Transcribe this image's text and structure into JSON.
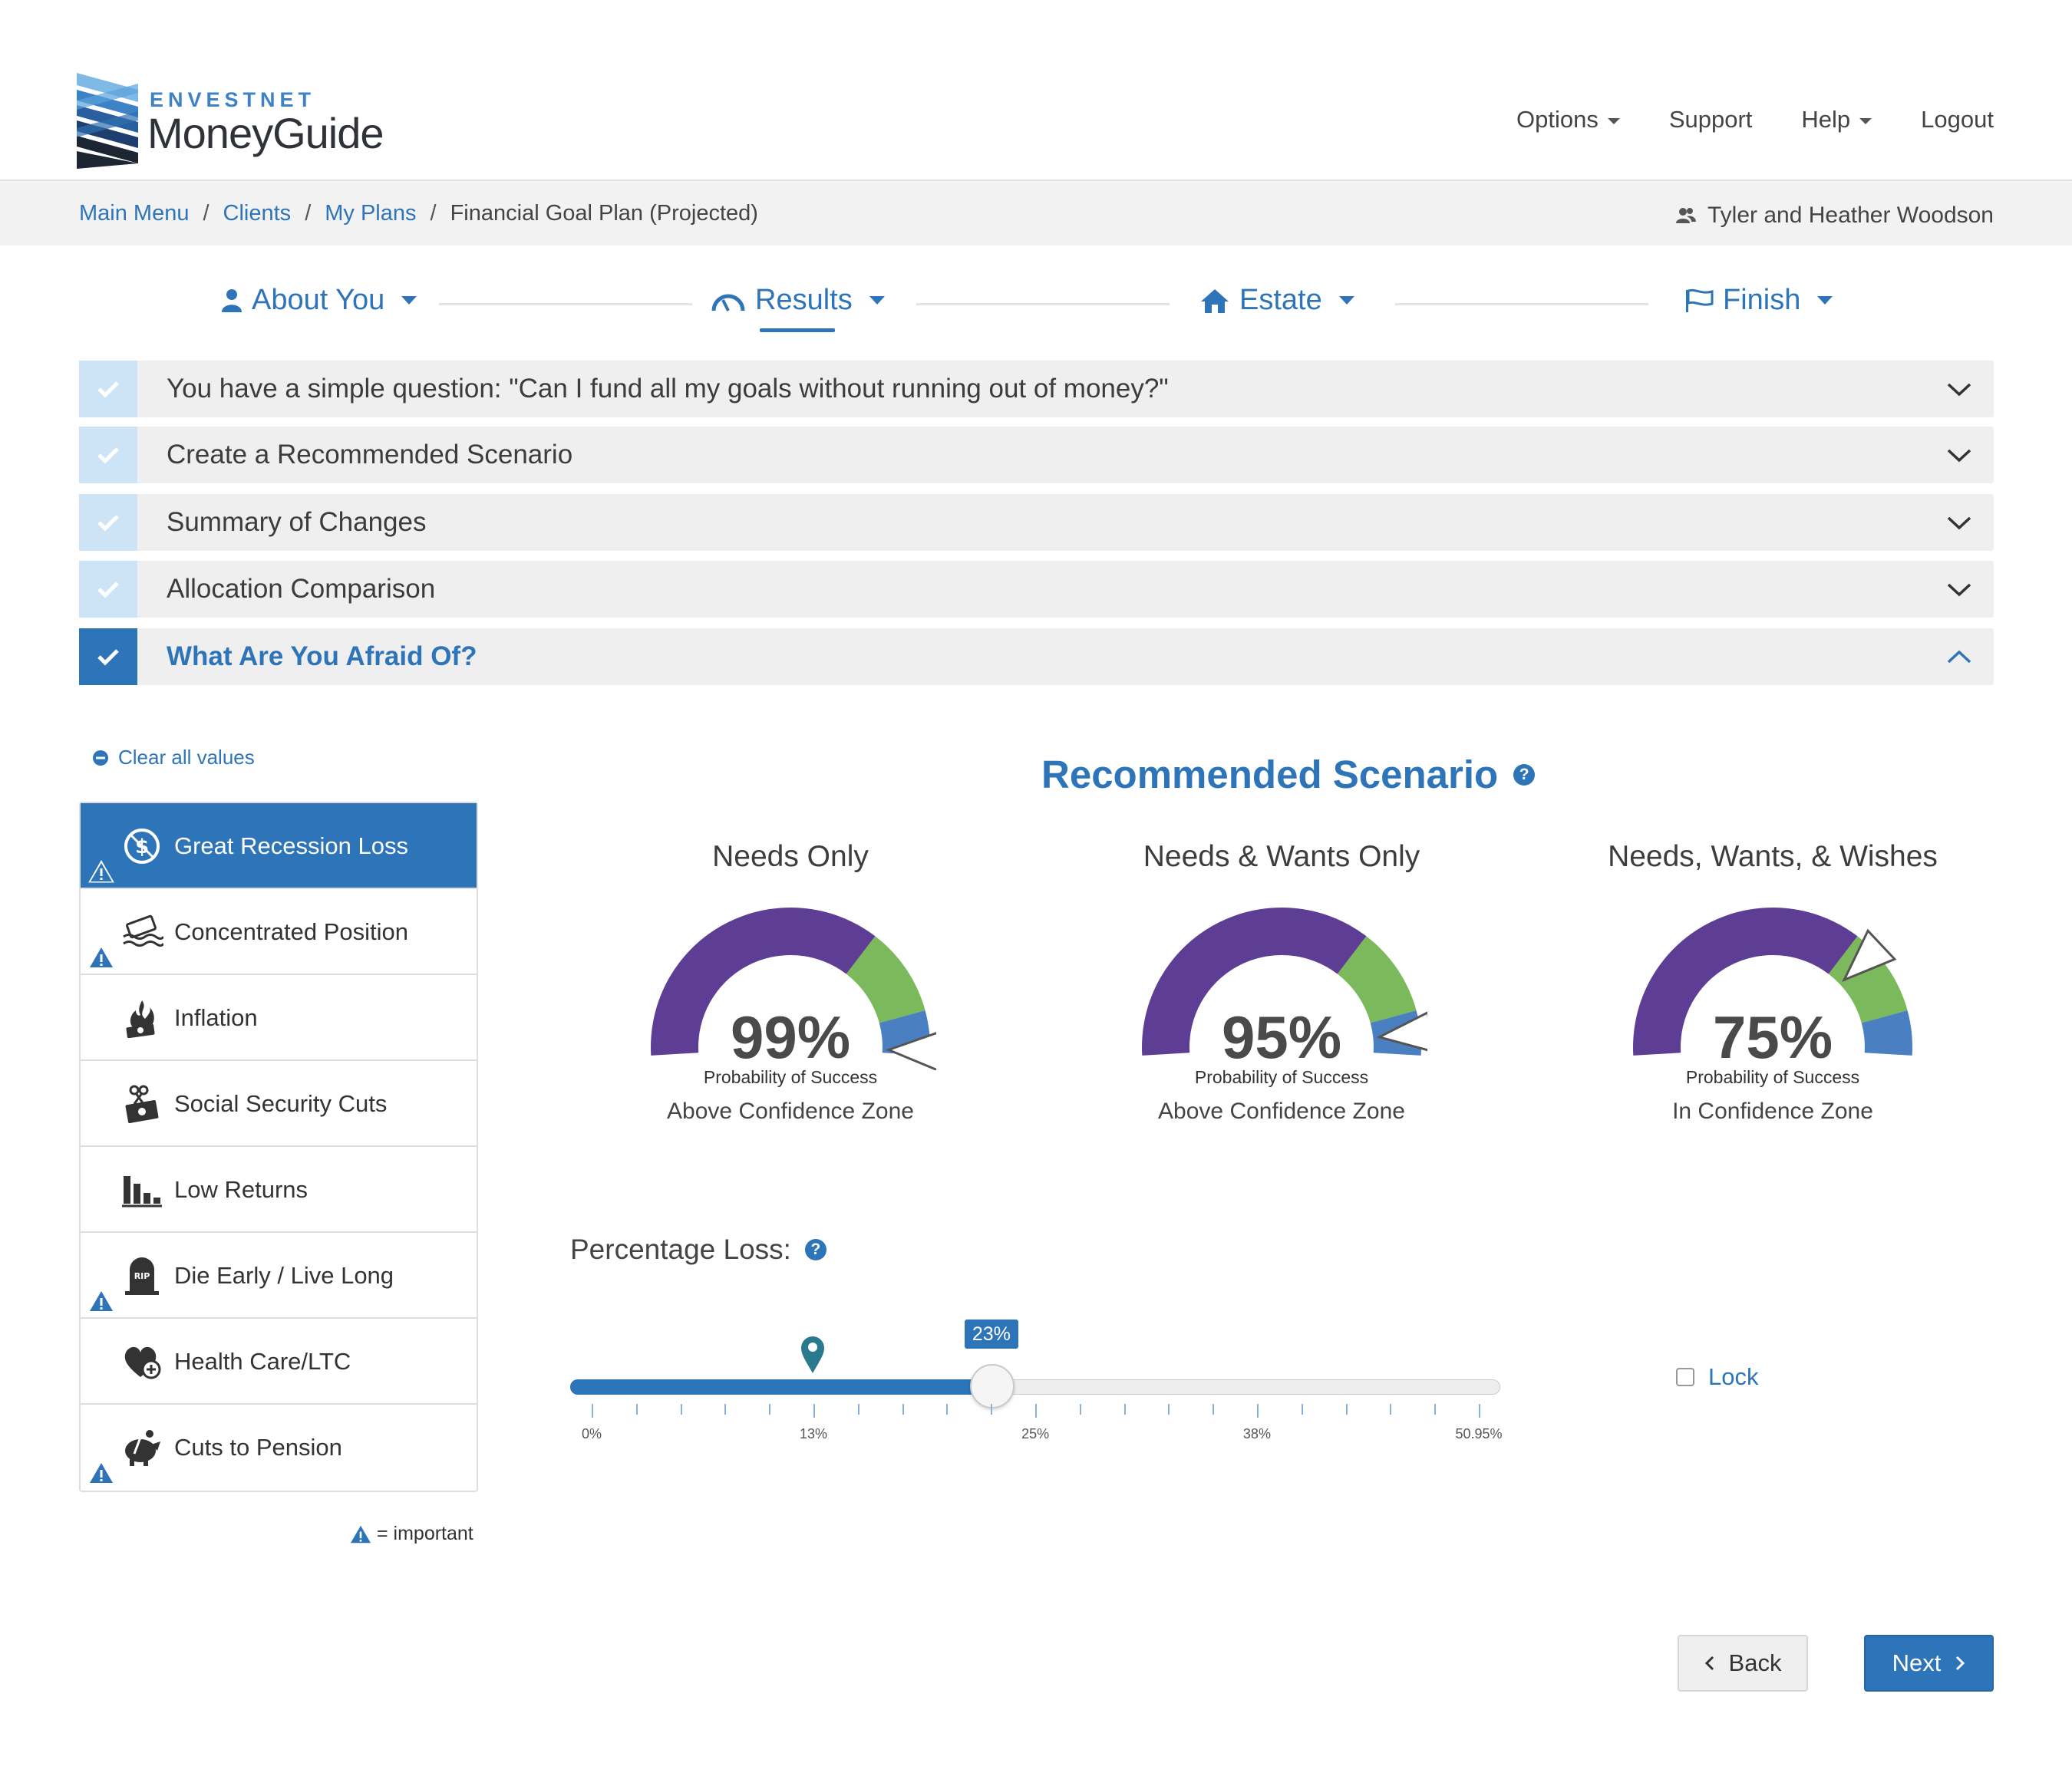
{
  "brand": {
    "top": "ENVESTNET",
    "main": "MoneyGuide"
  },
  "topnav": {
    "options": "Options",
    "support": "Support",
    "help": "Help",
    "logout": "Logout"
  },
  "breadcrumb": {
    "main_menu": "Main Menu",
    "clients": "Clients",
    "my_plans": "My Plans",
    "current": "Financial Goal Plan (Projected)",
    "sep": "/"
  },
  "client_name": "Tyler and Heather Woodson",
  "steps": {
    "about": "About You",
    "results": "Results",
    "estate": "Estate",
    "finish": "Finish"
  },
  "accordion": [
    {
      "title": "You have a simple question: \"Can I fund all my goals without running out of money?\""
    },
    {
      "title": "Create a Recommended Scenario"
    },
    {
      "title": "Summary of Changes"
    },
    {
      "title": "Allocation Comparison"
    },
    {
      "title": "What Are You Afraid Of?"
    }
  ],
  "clear_all": "Clear all values",
  "fears": [
    {
      "label": "Great Recession Loss",
      "icon": "dollar-circle-icon",
      "important": true
    },
    {
      "label": "Concentrated Position",
      "icon": "sinking-money-icon",
      "important": true
    },
    {
      "label": "Inflation",
      "icon": "burning-money-icon",
      "important": false
    },
    {
      "label": "Social Security Cuts",
      "icon": "cut-money-icon",
      "important": false
    },
    {
      "label": "Low Returns",
      "icon": "bar-chart-icon",
      "important": false
    },
    {
      "label": "Die Early / Live Long",
      "icon": "tombstone-icon",
      "important": true
    },
    {
      "label": "Health Care/LTC",
      "icon": "heart-plus-icon",
      "important": false
    },
    {
      "label": "Cuts to Pension",
      "icon": "piggy-bank-icon",
      "important": true
    }
  ],
  "important_legend": "= important",
  "scenario": {
    "title": "Recommended Scenario",
    "gauges": [
      {
        "title": "Needs Only",
        "value": "99%",
        "caption": "Probability of Success",
        "zone": "Above Confidence Zone",
        "needle_fraction": 0.99
      },
      {
        "title": "Needs & Wants Only",
        "value": "95%",
        "caption": "Probability of Success",
        "zone": "Above Confidence Zone",
        "needle_fraction": 0.95
      },
      {
        "title": "Needs, Wants, & Wishes",
        "value": "75%",
        "caption": "Probability of Success",
        "zone": "In Confidence Zone",
        "needle_fraction": 0.75
      }
    ],
    "colors": {
      "purple": "#5e3e94",
      "green": "#7cb85c",
      "blue": "#4a7fc1"
    }
  },
  "percentage_loss": {
    "label": "Percentage Loss:",
    "value_label": "23%",
    "value": 23,
    "max": 50.95,
    "marker_value": 12.7,
    "tick_labels": [
      "0%",
      "13%",
      "25%",
      "38%",
      "50.95%"
    ],
    "tick_values": [
      0,
      12.74,
      25.48,
      38.21,
      50.95
    ]
  },
  "lock": "Lock",
  "buttons": {
    "back": "Back",
    "next": "Next"
  },
  "accent": "#2e74b8"
}
